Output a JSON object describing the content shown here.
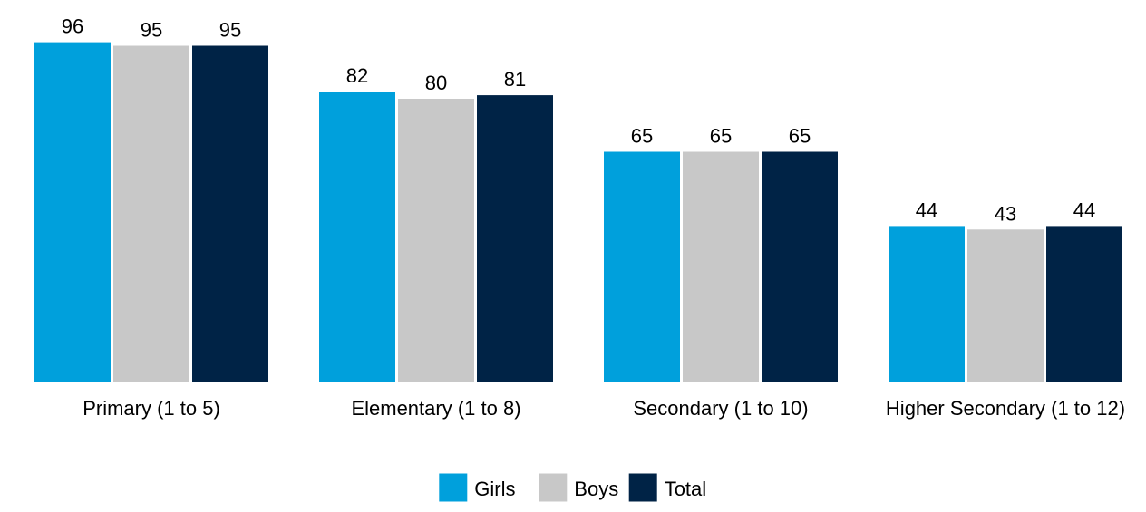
{
  "chart_data": {
    "type": "bar",
    "title": "",
    "xlabel": "",
    "ylabel": "",
    "ylim": [
      0,
      100
    ],
    "grid": false,
    "legend_position": "bottom-center",
    "categories": [
      "Primary (1 to 5)",
      "Elementary (1 to 8)",
      "Secondary (1 to 10)",
      "Higher Secondary (1 to 12)"
    ],
    "series": [
      {
        "name": "Girls",
        "color": "#00a0dc",
        "values": [
          96,
          82,
          65,
          44
        ],
        "labels": [
          "96",
          "82",
          "65",
          "44"
        ]
      },
      {
        "name": "Boys",
        "color": "#c8c8c8",
        "values": [
          95,
          80,
          65,
          43
        ],
        "labels": [
          "95",
          "80",
          "65",
          "43"
        ]
      },
      {
        "name": "Total",
        "color": "#002346",
        "values": [
          95,
          81,
          65,
          44
        ],
        "labels": [
          "95",
          "81",
          "65",
          "44"
        ]
      }
    ]
  }
}
